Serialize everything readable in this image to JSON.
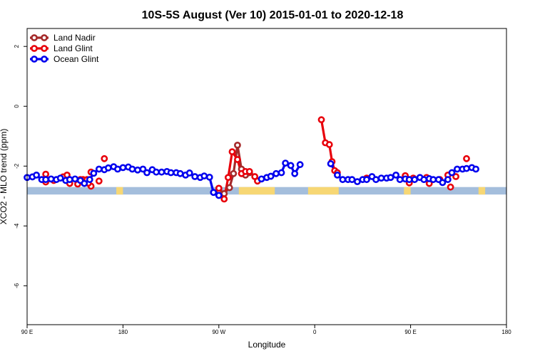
{
  "chart_data": {
    "type": "line",
    "title": "10S-5S August (Ver 10)   2015-01-01 to 2020-12-18",
    "xlabel": "Longitude",
    "ylabel": "XCO2 - MLO trend (ppm)",
    "xlim": [
      90,
      450
    ],
    "ylim": [
      -7.3,
      2.6
    ],
    "x_ticks": [
      {
        "value": 90,
        "label": "90 E"
      },
      {
        "value": 162,
        "label": "180"
      },
      {
        "value": 234,
        "label": "90 W"
      },
      {
        "value": 306,
        "label": "0"
      },
      {
        "value": 378,
        "label": "90 E"
      },
      {
        "value": 450,
        "label": "180"
      }
    ],
    "y_ticks": [
      {
        "value": 2,
        "label": "2"
      },
      {
        "value": 0,
        "label": "0"
      },
      {
        "value": -2,
        "label": "-2"
      },
      {
        "value": -4,
        "label": "-4"
      },
      {
        "value": -6,
        "label": "-6"
      }
    ],
    "legend": {
      "position": "top-left"
    },
    "map_strip": {
      "y_range": [
        -2.95,
        -2.7
      ],
      "ocean_color": "#a4bedc",
      "land_color": "#f7d774",
      "land_spans": [
        [
          157,
          162
        ],
        [
          249,
          276
        ],
        [
          301,
          324
        ],
        [
          373,
          378
        ],
        [
          429,
          434
        ]
      ]
    },
    "series": [
      {
        "name": "Land Nadir",
        "color": "#a52a2a",
        "points": [
          [
            234,
            -2.82
          ],
          [
            238,
            -2.92
          ],
          [
            242,
            -2.72
          ],
          [
            245,
            -2.25
          ],
          [
            248,
            -1.3
          ],
          [
            251,
            -2.1
          ],
          [
            254,
            -2.3
          ],
          [
            257,
            -2.22
          ]
        ],
        "segments": [
          [
            [
              238,
              -2.92
            ],
            [
              242,
              -2.72
            ],
            [
              245,
              -2.25
            ],
            [
              248,
              -1.3
            ],
            [
              251,
              -2.1
            ],
            [
              254,
              -2.3
            ],
            [
              257,
              -2.22
            ]
          ]
        ]
      },
      {
        "name": "Land Glint",
        "color": "#e8000b",
        "points": [
          [
            104,
            -2.27
          ],
          [
            104,
            -2.53
          ],
          [
            110,
            -2.48
          ],
          [
            117,
            -2.36
          ],
          [
            120,
            -2.3
          ],
          [
            122,
            -2.58
          ],
          [
            128,
            -2.6
          ],
          [
            132,
            -2.45
          ],
          [
            135,
            -2.45
          ],
          [
            138,
            -2.67
          ],
          [
            136,
            -2.57
          ],
          [
            130,
            -2.45
          ],
          [
            138,
            -2.2
          ],
          [
            144,
            -2.5
          ],
          [
            148,
            -1.75
          ],
          [
            234,
            -2.74
          ],
          [
            238,
            -3.1
          ],
          [
            241,
            -2.38
          ],
          [
            244,
            -1.52
          ],
          [
            248,
            -1.78
          ],
          [
            251,
            -2.25
          ],
          [
            254,
            -2.18
          ],
          [
            257,
            -2.18
          ],
          [
            261,
            -2.35
          ],
          [
            263,
            -2.5
          ],
          [
            311,
            -0.45
          ],
          [
            314,
            -1.22
          ],
          [
            317,
            -1.28
          ],
          [
            319,
            -1.85
          ],
          [
            321,
            -2.15
          ],
          [
            323,
            -2.22
          ],
          [
            345,
            -2.4
          ],
          [
            374,
            -2.32
          ],
          [
            377,
            -2.56
          ],
          [
            380,
            -2.4
          ],
          [
            390,
            -2.38
          ],
          [
            392,
            -2.58
          ],
          [
            400,
            -2.45
          ],
          [
            406,
            -2.3
          ],
          [
            408,
            -2.7
          ],
          [
            412,
            -2.35
          ],
          [
            420,
            -1.75
          ]
        ],
        "segments": [
          [
            [
              234,
              -2.74
            ],
            [
              238,
              -3.1
            ],
            [
              241,
              -2.38
            ],
            [
              244,
              -1.52
            ],
            [
              248,
              -1.78
            ],
            [
              251,
              -2.25
            ],
            [
              254,
              -2.18
            ],
            [
              257,
              -2.18
            ],
            [
              261,
              -2.35
            ],
            [
              263,
              -2.5
            ]
          ],
          [
            [
              311,
              -0.45
            ],
            [
              314,
              -1.22
            ],
            [
              317,
              -1.28
            ],
            [
              319,
              -1.85
            ],
            [
              321,
              -2.15
            ],
            [
              323,
              -2.22
            ]
          ]
        ]
      },
      {
        "name": "Ocean Glint",
        "color": "#0000ee",
        "points": [
          [
            90,
            -2.38
          ],
          [
            94,
            -2.36
          ],
          [
            97,
            -2.3
          ],
          [
            101,
            -2.45
          ],
          [
            104,
            -2.45
          ],
          [
            108,
            -2.43
          ],
          [
            112,
            -2.45
          ],
          [
            115,
            -2.4
          ],
          [
            119,
            -2.48
          ],
          [
            122,
            -2.45
          ],
          [
            126,
            -2.43
          ],
          [
            130,
            -2.48
          ],
          [
            133,
            -2.58
          ],
          [
            137,
            -2.45
          ],
          [
            140,
            -2.24
          ],
          [
            144,
            -2.1
          ],
          [
            148,
            -2.12
          ],
          [
            151,
            -2.06
          ],
          [
            155,
            -2.02
          ],
          [
            158,
            -2.1
          ],
          [
            162,
            -2.05
          ],
          [
            166,
            -2.03
          ],
          [
            169,
            -2.1
          ],
          [
            173,
            -2.13
          ],
          [
            177,
            -2.1
          ],
          [
            180,
            -2.22
          ],
          [
            184,
            -2.12
          ],
          [
            187,
            -2.2
          ],
          [
            191,
            -2.2
          ],
          [
            195,
            -2.18
          ],
          [
            198,
            -2.22
          ],
          [
            202,
            -2.22
          ],
          [
            205,
            -2.25
          ],
          [
            209,
            -2.3
          ],
          [
            212,
            -2.23
          ],
          [
            216,
            -2.35
          ],
          [
            220,
            -2.38
          ],
          [
            223,
            -2.33
          ],
          [
            227,
            -2.37
          ],
          [
            230,
            -2.88
          ],
          [
            234,
            -2.98
          ],
          [
            266,
            -2.43
          ],
          [
            270,
            -2.38
          ],
          [
            273,
            -2.34
          ],
          [
            277,
            -2.25
          ],
          [
            281,
            -2.22
          ],
          [
            284,
            -1.9
          ],
          [
            288,
            -1.98
          ],
          [
            291,
            -2.25
          ],
          [
            295,
            -1.95
          ],
          [
            318,
            -1.92
          ],
          [
            323,
            -2.3
          ],
          [
            327,
            -2.45
          ],
          [
            331,
            -2.45
          ],
          [
            334,
            -2.45
          ],
          [
            338,
            -2.52
          ],
          [
            342,
            -2.45
          ],
          [
            345,
            -2.45
          ],
          [
            349,
            -2.35
          ],
          [
            352,
            -2.45
          ],
          [
            356,
            -2.4
          ],
          [
            360,
            -2.4
          ],
          [
            363,
            -2.38
          ],
          [
            367,
            -2.3
          ],
          [
            370,
            -2.45
          ],
          [
            374,
            -2.43
          ],
          [
            377,
            -2.45
          ],
          [
            381,
            -2.45
          ],
          [
            385,
            -2.38
          ],
          [
            388,
            -2.45
          ],
          [
            392,
            -2.42
          ],
          [
            395,
            -2.45
          ],
          [
            399,
            -2.45
          ],
          [
            402,
            -2.55
          ],
          [
            406,
            -2.45
          ],
          [
            409,
            -2.22
          ],
          [
            413,
            -2.1
          ],
          [
            417,
            -2.1
          ],
          [
            420,
            -2.08
          ],
          [
            424,
            -2.05
          ],
          [
            427,
            -2.1
          ]
        ],
        "segments": [
          [
            [
              90,
              -2.38
            ],
            [
              94,
              -2.36
            ],
            [
              97,
              -2.3
            ],
            [
              101,
              -2.45
            ],
            [
              104,
              -2.45
            ],
            [
              108,
              -2.43
            ],
            [
              112,
              -2.45
            ],
            [
              115,
              -2.4
            ],
            [
              119,
              -2.48
            ],
            [
              122,
              -2.45
            ],
            [
              126,
              -2.43
            ],
            [
              130,
              -2.48
            ],
            [
              133,
              -2.58
            ],
            [
              137,
              -2.45
            ],
            [
              140,
              -2.24
            ],
            [
              144,
              -2.1
            ],
            [
              148,
              -2.12
            ],
            [
              151,
              -2.06
            ],
            [
              155,
              -2.02
            ],
            [
              158,
              -2.1
            ],
            [
              162,
              -2.05
            ],
            [
              166,
              -2.03
            ],
            [
              169,
              -2.1
            ],
            [
              173,
              -2.13
            ],
            [
              177,
              -2.1
            ],
            [
              180,
              -2.22
            ],
            [
              184,
              -2.12
            ],
            [
              187,
              -2.2
            ],
            [
              191,
              -2.2
            ],
            [
              195,
              -2.18
            ],
            [
              198,
              -2.22
            ],
            [
              202,
              -2.22
            ],
            [
              205,
              -2.25
            ],
            [
              209,
              -2.3
            ],
            [
              212,
              -2.23
            ],
            [
              216,
              -2.35
            ],
            [
              220,
              -2.38
            ],
            [
              223,
              -2.33
            ],
            [
              227,
              -2.37
            ],
            [
              230,
              -2.88
            ],
            [
              234,
              -2.98
            ]
          ],
          [
            [
              266,
              -2.43
            ],
            [
              270,
              -2.38
            ],
            [
              273,
              -2.34
            ],
            [
              277,
              -2.25
            ],
            [
              281,
              -2.22
            ],
            [
              284,
              -1.9
            ],
            [
              288,
              -1.98
            ],
            [
              291,
              -2.25
            ],
            [
              295,
              -1.95
            ]
          ],
          [
            [
              318,
              -1.92
            ],
            [
              323,
              -2.3
            ],
            [
              327,
              -2.45
            ],
            [
              331,
              -2.45
            ],
            [
              334,
              -2.45
            ],
            [
              338,
              -2.52
            ],
            [
              342,
              -2.45
            ],
            [
              345,
              -2.45
            ],
            [
              349,
              -2.35
            ],
            [
              352,
              -2.45
            ],
            [
              356,
              -2.4
            ],
            [
              360,
              -2.4
            ],
            [
              363,
              -2.38
            ],
            [
              367,
              -2.3
            ],
            [
              370,
              -2.45
            ],
            [
              374,
              -2.43
            ],
            [
              377,
              -2.45
            ],
            [
              381,
              -2.45
            ],
            [
              385,
              -2.38
            ],
            [
              388,
              -2.45
            ],
            [
              392,
              -2.42
            ],
            [
              395,
              -2.45
            ],
            [
              399,
              -2.45
            ],
            [
              402,
              -2.55
            ],
            [
              406,
              -2.45
            ],
            [
              409,
              -2.22
            ],
            [
              413,
              -2.1
            ],
            [
              417,
              -2.1
            ],
            [
              420,
              -2.08
            ],
            [
              424,
              -2.05
            ],
            [
              427,
              -2.1
            ]
          ]
        ]
      }
    ]
  }
}
